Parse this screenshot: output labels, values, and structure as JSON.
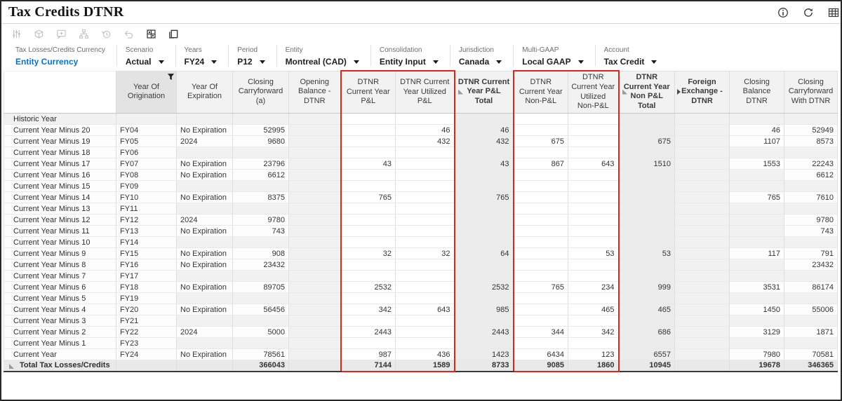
{
  "title": "Tax Credits DTNR",
  "titlebar_icons": [
    {
      "icon": "info",
      "enabled": true
    },
    {
      "icon": "refresh",
      "enabled": true
    },
    {
      "icon": "grid-partial",
      "enabled": true
    }
  ],
  "toolbar": {
    "buttons": [
      {
        "icon": "adjust",
        "enabled": false
      },
      {
        "icon": "cube",
        "enabled": false
      },
      {
        "icon": "comment-add",
        "enabled": false
      },
      {
        "icon": "hierarchy",
        "enabled": false
      },
      {
        "icon": "history",
        "enabled": false
      },
      {
        "icon": "undo",
        "enabled": false
      },
      {
        "icon": "grid-layout",
        "enabled": true
      },
      {
        "icon": "format-window",
        "enabled": true
      }
    ]
  },
  "pov": {
    "items": [
      {
        "label": "Tax Losses/Credits Currency",
        "value": "Entity Currency",
        "link": true,
        "dropdown": false
      },
      {
        "label": "Scenario",
        "value": "Actual",
        "link": false,
        "dropdown": true
      },
      {
        "label": "Years",
        "value": "FY24",
        "link": false,
        "dropdown": true
      },
      {
        "label": "Period",
        "value": "P12",
        "link": false,
        "dropdown": true
      },
      {
        "label": "Entity",
        "value": "Montreal (CAD)",
        "link": false,
        "dropdown": true
      },
      {
        "label": "Consolidation",
        "value": "Entity Input",
        "link": false,
        "dropdown": true
      },
      {
        "label": "Jurisdiction",
        "value": "Canada",
        "link": false,
        "dropdown": true
      },
      {
        "label": "Multi-GAAP",
        "value": "Local GAAP",
        "link": false,
        "dropdown": true
      },
      {
        "label": "Account",
        "value": "Tax Credit",
        "link": false,
        "dropdown": true
      }
    ]
  },
  "colors": {
    "accent_red": "#e1251b",
    "link_blue": "#0572ce"
  },
  "table": {
    "columns": [
      {
        "id": "year-of-origination",
        "label": "Year Of Origination",
        "align": "left",
        "filter": true
      },
      {
        "id": "year-of-expiration",
        "label": "Year Of Expiration",
        "align": "left"
      },
      {
        "id": "closing-carryforward-a",
        "label": "Closing Carryforward (a)",
        "align": "right"
      },
      {
        "id": "opening-balance-dtnr",
        "label": "Opening Balance - DTNR",
        "align": "right"
      },
      {
        "id": "dtnr-current-year-pl",
        "label": "DTNR Current Year P&L",
        "align": "right",
        "input": true,
        "red": "left"
      },
      {
        "id": "dtnr-current-year-utilized-pl",
        "label": "DTNR Current Year Utilized P&L",
        "align": "right",
        "input": true,
        "red": "right"
      },
      {
        "id": "dtnr-current-year-pl-total",
        "label": "DTNR Current Year P&L Total",
        "align": "right",
        "total": true,
        "bold": true,
        "marker": "collapse"
      },
      {
        "id": "dtnr-current-year-non-pl",
        "label": "DTNR Current Year Non-P&L",
        "align": "right",
        "input": true,
        "red": "left"
      },
      {
        "id": "dtnr-current-year-utilized-non-pl",
        "label": "DTNR Current Year Utilized Non-P&L",
        "align": "right",
        "input": true,
        "red": "right"
      },
      {
        "id": "dtnr-current-year-non-pl-total",
        "label": "DTNR Current Year Non P&L Total",
        "align": "right",
        "total": true,
        "bold": true,
        "marker": "collapse"
      },
      {
        "id": "foreign-exchange-dtnr",
        "label": "Foreign Exchange - DTNR",
        "align": "right",
        "bold": true,
        "marker": "expand"
      },
      {
        "id": "closing-balance-dtnr",
        "label": "Closing Balance DTNR",
        "align": "right"
      },
      {
        "id": "closing-carryforward-with-dtnr",
        "label": "Closing Carryforward With DTNR",
        "align": "right"
      }
    ],
    "rows": [
      {
        "label": "Historic Year",
        "cells": [
          "",
          "",
          "",
          "",
          "",
          "",
          "",
          "",
          "",
          "",
          "",
          "",
          ""
        ]
      },
      {
        "label": "Current Year Minus 20",
        "cells": [
          "FY04",
          "No Expiration",
          "52995",
          "",
          "",
          "46",
          "46",
          "",
          "",
          "",
          "",
          "46",
          "52949"
        ]
      },
      {
        "label": "Current Year Minus 19",
        "cells": [
          "FY05",
          "2024",
          "9680",
          "",
          "",
          "432",
          "432",
          "675",
          "",
          "675",
          "",
          "1107",
          "8573"
        ]
      },
      {
        "label": "Current Year Minus 18",
        "cells": [
          "FY06",
          "",
          "",
          "",
          "",
          "",
          "",
          "",
          "",
          "",
          "",
          "",
          ""
        ]
      },
      {
        "label": "Current Year Minus 17",
        "cells": [
          "FY07",
          "No Expiration",
          "23796",
          "",
          "43",
          "",
          "43",
          "867",
          "643",
          "1510",
          "",
          "1553",
          "22243"
        ]
      },
      {
        "label": "Current Year Minus 16",
        "cells": [
          "FY08",
          "No Expiration",
          "6612",
          "",
          "",
          "",
          "",
          "",
          "",
          "",
          "",
          "",
          "6612"
        ]
      },
      {
        "label": "Current Year Minus 15",
        "cells": [
          "FY09",
          "",
          "",
          "",
          "",
          "",
          "",
          "",
          "",
          "",
          "",
          "",
          ""
        ]
      },
      {
        "label": "Current Year Minus 14",
        "cells": [
          "FY10",
          "No Expiration",
          "8375",
          "",
          "765",
          "",
          "765",
          "",
          "",
          "",
          "",
          "765",
          "7610"
        ]
      },
      {
        "label": "Current Year Minus 13",
        "cells": [
          "FY11",
          "",
          "",
          "",
          "",
          "",
          "",
          "",
          "",
          "",
          "",
          "",
          ""
        ]
      },
      {
        "label": "Current Year Minus 12",
        "cells": [
          "FY12",
          "2024",
          "9780",
          "",
          "",
          "",
          "",
          "",
          "",
          "",
          "",
          "",
          "9780"
        ]
      },
      {
        "label": "Current Year Minus 11",
        "cells": [
          "FY13",
          "No Expiration",
          "743",
          "",
          "",
          "",
          "",
          "",
          "",
          "",
          "",
          "",
          "743"
        ]
      },
      {
        "label": "Current Year Minus 10",
        "cells": [
          "FY14",
          "",
          "",
          "",
          "",
          "",
          "",
          "",
          "",
          "",
          "",
          "",
          ""
        ]
      },
      {
        "label": "Current Year Minus 9",
        "cells": [
          "FY15",
          "No Expiration",
          "908",
          "",
          "32",
          "32",
          "64",
          "",
          "53",
          "53",
          "",
          "117",
          "791"
        ]
      },
      {
        "label": "Current Year Minus 8",
        "cells": [
          "FY16",
          "No Expiration",
          "23432",
          "",
          "",
          "",
          "",
          "",
          "",
          "",
          "",
          "",
          "23432"
        ]
      },
      {
        "label": "Current Year Minus 7",
        "cells": [
          "FY17",
          "",
          "",
          "",
          "",
          "",
          "",
          "",
          "",
          "",
          "",
          "",
          ""
        ]
      },
      {
        "label": "Current Year Minus 6",
        "cells": [
          "FY18",
          "No Expiration",
          "89705",
          "",
          "2532",
          "",
          "2532",
          "765",
          "234",
          "999",
          "",
          "3531",
          "86174"
        ]
      },
      {
        "label": "Current Year Minus 5",
        "cells": [
          "FY19",
          "",
          "",
          "",
          "",
          "",
          "",
          "",
          "",
          "",
          "",
          "",
          ""
        ]
      },
      {
        "label": "Current Year Minus 4",
        "cells": [
          "FY20",
          "No Expiration",
          "56456",
          "",
          "342",
          "643",
          "985",
          "",
          "465",
          "465",
          "",
          "1450",
          "55006"
        ]
      },
      {
        "label": "Current Year Minus 3",
        "cells": [
          "FY21",
          "",
          "",
          "",
          "",
          "",
          "",
          "",
          "",
          "",
          "",
          "",
          ""
        ]
      },
      {
        "label": "Current Year Minus 2",
        "cells": [
          "FY22",
          "2024",
          "5000",
          "",
          "2443",
          "",
          "2443",
          "344",
          "342",
          "686",
          "",
          "3129",
          "1871"
        ]
      },
      {
        "label": "Current Year Minus 1",
        "cells": [
          "FY23",
          "",
          "",
          "",
          "",
          "",
          "",
          "",
          "",
          "",
          "",
          "",
          ""
        ]
      },
      {
        "label": "Current Year",
        "cells": [
          "FY24",
          "No Expiration",
          "78561",
          "",
          "987",
          "436",
          "1423",
          "6434",
          "123",
          "6557",
          "",
          "7980",
          "70581"
        ]
      }
    ],
    "total_row": {
      "label": "Total Tax Losses/Credits",
      "cells": [
        "",
        "",
        "366043",
        "",
        "7144",
        "1589",
        "8733",
        "9085",
        "1860",
        "10945",
        "",
        "19678",
        "346365"
      ]
    }
  }
}
